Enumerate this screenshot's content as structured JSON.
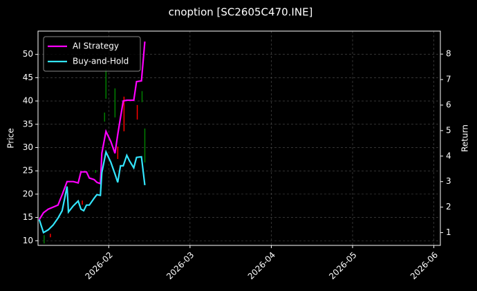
{
  "chart_data": {
    "type": "line",
    "title": "cnoption [SC2605C470.INE]",
    "y_label": "Price",
    "y2_label": "Return",
    "xlim": [
      1.13,
      6.08
    ],
    "xticks": [
      {
        "value": 2,
        "label": "2026-02"
      },
      {
        "value": 3,
        "label": "2026-03"
      },
      {
        "value": 4,
        "label": "2026-04"
      },
      {
        "value": 5,
        "label": "2026-05"
      },
      {
        "value": 6,
        "label": "2026-06"
      }
    ],
    "ylim": [
      9,
      55
    ],
    "yticks": [
      10,
      15,
      20,
      25,
      30,
      35,
      40,
      45,
      50
    ],
    "y2lim": [
      0.5,
      8.9
    ],
    "y2ticks": [
      1,
      2,
      3,
      4,
      5,
      6,
      7,
      8
    ],
    "grid": true,
    "legend": "upper left",
    "x": [
      1.145,
      1.197,
      1.256,
      1.316,
      1.376,
      1.427,
      1.487,
      1.504,
      1.564,
      1.624,
      1.658,
      1.692,
      1.726,
      1.761,
      1.821,
      1.855,
      1.897,
      1.915,
      1.966,
      2.026,
      2.077,
      2.111,
      2.145,
      2.179,
      2.222,
      2.256,
      2.308,
      2.342,
      2.402,
      2.444
    ],
    "series": [
      {
        "name": "AI Strategy",
        "color": "#ff00ff",
        "axis": "y2",
        "values": [
          1.51,
          1.78,
          1.92,
          2.0,
          2.08,
          2.49,
          3.0,
          3.0,
          3.0,
          2.95,
          3.38,
          3.38,
          3.38,
          3.14,
          3.08,
          2.97,
          2.92,
          4.11,
          4.97,
          4.57,
          4.11,
          4.84,
          5.51,
          6.16,
          6.19,
          6.19,
          6.19,
          6.92,
          6.95,
          8.49
        ]
      },
      {
        "name": "Buy-and-Hold",
        "color": "#33e6ff",
        "axis": "y2",
        "values": [
          1.51,
          1.0,
          1.11,
          1.3,
          1.57,
          1.86,
          2.81,
          1.81,
          2.05,
          2.24,
          1.92,
          1.86,
          2.08,
          2.08,
          2.35,
          2.49,
          2.46,
          3.35,
          4.16,
          3.76,
          3.3,
          2.97,
          3.62,
          3.62,
          4.03,
          3.81,
          3.54,
          3.95,
          3.97,
          2.86
        ]
      }
    ],
    "candles": {
      "x": [
        1.205,
        1.282,
        1.675,
        1.838,
        1.949,
        1.966,
        2.077,
        2.111,
        2.188,
        2.351,
        2.41,
        2.444
      ],
      "high": [
        11.19,
        11.49,
        18.62,
        25.17,
        37.51,
        46.88,
        42.71,
        30.22,
        40.93,
        39.14,
        42.12,
        34.09
      ],
      "low": [
        9.41,
        10.74,
        17.73,
        24.57,
        35.58,
        40.48,
        36.47,
        27.55,
        33.49,
        36.02,
        39.74,
        26.8
      ],
      "colors": [
        "green",
        "red",
        "red",
        "green",
        "green",
        "green",
        "green",
        "red",
        "red",
        "red",
        "green",
        "green"
      ]
    }
  }
}
